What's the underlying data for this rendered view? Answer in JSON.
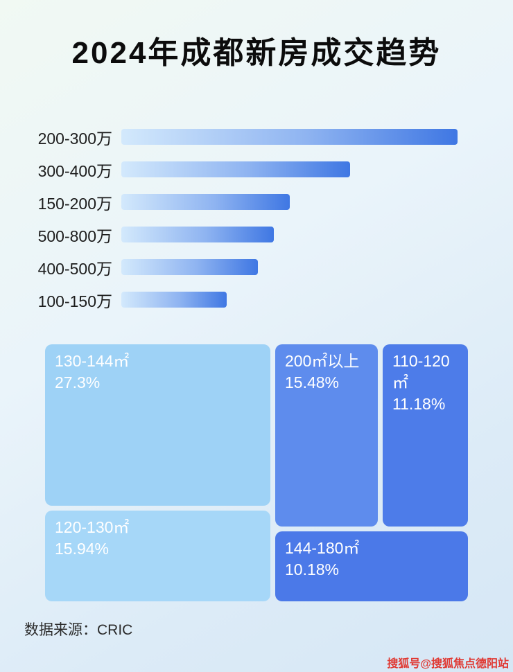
{
  "page": {
    "title": "2024年成都新房成交趋势",
    "source": "数据来源：CRIC",
    "watermark": "搜狐号@搜狐焦点德阳站"
  },
  "colors": {
    "bar_gradient_start": "#d3e9fc",
    "bar_gradient_end": "#3f77e3",
    "watermark_red": "#e03a34",
    "background_tint": "#e4f1f8"
  },
  "chart_data": [
    {
      "type": "bar",
      "orientation": "horizontal",
      "title": "2024年成都新房成交趋势",
      "categories": [
        "200-300万",
        "300-400万",
        "150-200万",
        "500-800万",
        "400-500万",
        "100-150万"
      ],
      "values": [
        485,
        330,
        243,
        220,
        197,
        152
      ],
      "value_note": "no numeric axis shown in image; values are estimated relative bar lengths in px (max bar = 485)",
      "xlabel": "",
      "ylabel": "",
      "grid": false,
      "legend": false
    },
    {
      "type": "treemap",
      "title": "",
      "items": [
        {
          "label": "130-144㎡",
          "percent_label": "27.3%",
          "value": 27.3,
          "color": "#9ed2f6"
        },
        {
          "label": "120-130㎡",
          "percent_label": "15.94%",
          "value": 15.94,
          "color": "#a6d7f8"
        },
        {
          "label": "200㎡以上",
          "percent_label": "15.48%",
          "value": 15.48,
          "color": "#5e8ced"
        },
        {
          "label": "110-120㎡",
          "percent_label": "11.18%",
          "value": 11.18,
          "color": "#4d7ce9"
        },
        {
          "label": "144-180㎡",
          "percent_label": "10.18%",
          "value": 10.18,
          "color": "#4b79e8"
        }
      ]
    }
  ]
}
